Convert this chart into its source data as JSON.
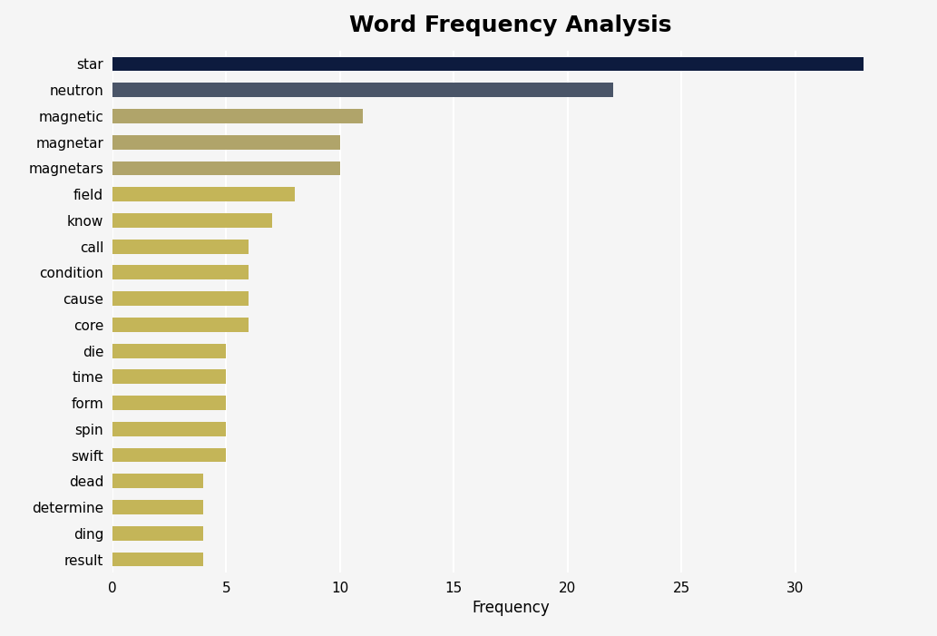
{
  "title": "Word Frequency Analysis",
  "xlabel": "Frequency",
  "categories": [
    "star",
    "neutron",
    "magnetic",
    "magnetar",
    "magnetars",
    "field",
    "know",
    "call",
    "condition",
    "cause",
    "core",
    "die",
    "time",
    "form",
    "spin",
    "swift",
    "dead",
    "determine",
    "ding",
    "result"
  ],
  "values": [
    33,
    22,
    11,
    10,
    10,
    8,
    7,
    6,
    6,
    6,
    6,
    5,
    5,
    5,
    5,
    5,
    4,
    4,
    4,
    4
  ],
  "bar_colors": [
    "#0d1b3e",
    "#4a5568",
    "#b0a46a",
    "#b0a46a",
    "#b0a46a",
    "#c4b558",
    "#c4b558",
    "#c4b558",
    "#c4b558",
    "#c4b558",
    "#c4b558",
    "#c4b558",
    "#c4b558",
    "#c4b558",
    "#c4b558",
    "#c4b558",
    "#c4b558",
    "#c4b558",
    "#c4b558",
    "#c4b558"
  ],
  "background_color": "#f5f5f5",
  "title_fontsize": 18,
  "xlim": [
    0,
    35
  ],
  "xticks": [
    0,
    5,
    10,
    15,
    20,
    25,
    30
  ]
}
